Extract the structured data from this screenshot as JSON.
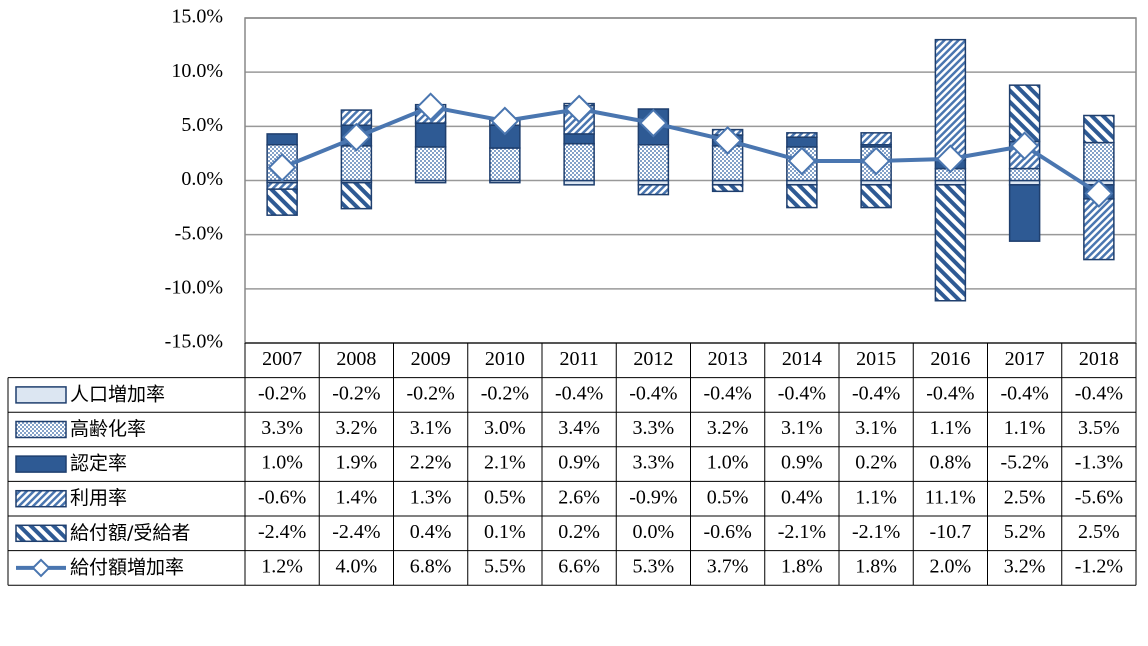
{
  "chart_data": {
    "type": "bar",
    "categories": [
      "2007",
      "2008",
      "2009",
      "2010",
      "2011",
      "2012",
      "2013",
      "2014",
      "2015",
      "2016",
      "2017",
      "2018"
    ],
    "ylim": [
      -15,
      15
    ],
    "yticks": [
      {
        "value": -15,
        "label": "-15.0%"
      },
      {
        "value": -10,
        "label": "-10.0%"
      },
      {
        "value": -5,
        "label": "-5.0%"
      },
      {
        "value": 0,
        "label": "0.0%"
      },
      {
        "value": 5,
        "label": "5.0%"
      },
      {
        "value": 10,
        "label": "10.0%"
      },
      {
        "value": 15,
        "label": "15.0%"
      }
    ],
    "grid": true,
    "series": [
      {
        "name": "人口増加率",
        "color": "#dce6f2",
        "values": [
          -0.2,
          -0.2,
          -0.2,
          -0.2,
          -0.4,
          -0.4,
          -0.4,
          -0.4,
          -0.4,
          -0.4,
          -0.4,
          -0.4
        ],
        "value_labels": [
          "-0.2%",
          "-0.2%",
          "-0.2%",
          "-0.2%",
          "-0.4%",
          "-0.4%",
          "-0.4%",
          "-0.4%",
          "-0.4%",
          "-0.4%",
          "-0.4%",
          "-0.4%"
        ]
      },
      {
        "name": "高齢化率",
        "color": "#9fb8d8",
        "values": [
          3.3,
          3.2,
          3.1,
          3.0,
          3.4,
          3.3,
          3.2,
          3.1,
          3.1,
          1.1,
          1.1,
          3.5
        ],
        "value_labels": [
          "3.3%",
          "3.2%",
          "3.1%",
          "3.0%",
          "3.4%",
          "3.3%",
          "3.2%",
          "3.1%",
          "3.1%",
          "1.1%",
          "1.1%",
          "3.5%"
        ]
      },
      {
        "name": "認定率",
        "color": "#2e5a94",
        "values": [
          1.0,
          1.9,
          2.2,
          2.1,
          0.9,
          3.3,
          1.0,
          0.9,
          0.2,
          0.8,
          -5.2,
          -1.3
        ],
        "value_labels": [
          "1.0%",
          "1.9%",
          "2.2%",
          "2.1%",
          "0.9%",
          "3.3%",
          "1.0%",
          "0.9%",
          "0.2%",
          "0.8%",
          "-5.2%",
          "-1.3%"
        ]
      },
      {
        "name": "利用率",
        "color": "#4a76b0",
        "values": [
          -0.6,
          1.4,
          1.3,
          0.5,
          2.6,
          -0.9,
          0.5,
          0.4,
          1.1,
          11.1,
          2.5,
          -5.6
        ],
        "value_labels": [
          "-0.6%",
          "1.4%",
          "1.3%",
          "0.5%",
          "2.6%",
          "-0.9%",
          "0.5%",
          "0.4%",
          "1.1%",
          "11.1%",
          "2.5%",
          "-5.6%"
        ]
      },
      {
        "name": "給付額/受給者",
        "color": "#2e5a94",
        "values": [
          -2.4,
          -2.4,
          0.4,
          0.1,
          0.2,
          0.0,
          -0.6,
          -2.1,
          -2.1,
          -10.7,
          5.2,
          2.5
        ],
        "value_labels": [
          "-2.4%",
          "-2.4%",
          "0.4%",
          "0.1%",
          "0.2%",
          "0.0%",
          "-0.6%",
          "-2.1%",
          "-2.1%",
          "-10.7",
          "5.2%",
          "2.5%"
        ]
      },
      {
        "name": "給付額増加率",
        "type": "line",
        "color": "#4a76b0",
        "values": [
          1.2,
          4.0,
          6.8,
          5.5,
          6.6,
          5.3,
          3.7,
          1.8,
          1.8,
          2.0,
          3.2,
          -1.2
        ],
        "value_labels": [
          "1.2%",
          "4.0%",
          "6.8%",
          "5.5%",
          "6.6%",
          "5.3%",
          "3.7%",
          "1.8%",
          "1.8%",
          "2.0%",
          "3.2%",
          "-1.2%"
        ]
      }
    ]
  }
}
